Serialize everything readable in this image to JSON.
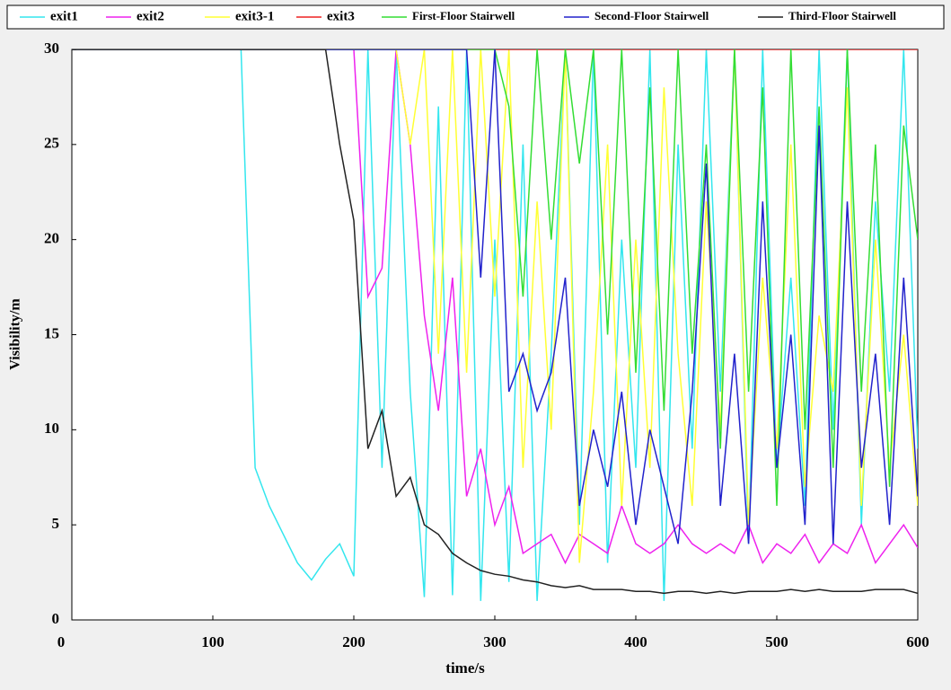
{
  "chart_data": {
    "type": "line",
    "x_label": "time/s",
    "y_label": "Visibility/m",
    "xlim": [
      0,
      600
    ],
    "ylim": [
      0,
      30
    ],
    "xticks": [
      0,
      100,
      200,
      300,
      400,
      500,
      600
    ],
    "yticks": [
      0,
      5,
      10,
      15,
      20,
      25,
      30
    ],
    "legend": "top",
    "x": [
      0,
      10,
      20,
      30,
      40,
      50,
      60,
      70,
      80,
      90,
      100,
      110,
      120,
      130,
      140,
      150,
      160,
      170,
      180,
      190,
      200,
      210,
      220,
      230,
      240,
      250,
      260,
      270,
      280,
      290,
      300,
      310,
      320,
      330,
      340,
      350,
      360,
      370,
      380,
      390,
      400,
      410,
      420,
      430,
      440,
      450,
      460,
      470,
      480,
      490,
      500,
      510,
      520,
      530,
      540,
      550,
      560,
      570,
      580,
      590,
      600
    ],
    "series": [
      {
        "name": "exit1",
        "color": "#33e6ee",
        "values": [
          30,
          30,
          30,
          30,
          30,
          30,
          30,
          30,
          30,
          30,
          30,
          30,
          30,
          8,
          6,
          4.5,
          3,
          2.1,
          3.2,
          4,
          2.3,
          30,
          8,
          30,
          12,
          1.2,
          27,
          1.3,
          30,
          1,
          20,
          2,
          25,
          1,
          14,
          30,
          5,
          30,
          3,
          20,
          8,
          30,
          1,
          25,
          9,
          30,
          12,
          30,
          4,
          30,
          8,
          18,
          6,
          30,
          10,
          30,
          5,
          22,
          12,
          30,
          9
        ]
      },
      {
        "name": "exit2",
        "color": "#ee22ee",
        "values": [
          30,
          30,
          30,
          30,
          30,
          30,
          30,
          30,
          30,
          30,
          30,
          30,
          30,
          30,
          30,
          30,
          30,
          30,
          30,
          30,
          30,
          17,
          18.5,
          30,
          25,
          16,
          11,
          18,
          6.5,
          9,
          5,
          7,
          3.5,
          4,
          4.5,
          3,
          4.5,
          4,
          3.5,
          6,
          4,
          3.5,
          4,
          5,
          4,
          3.5,
          4,
          3.5,
          5,
          3,
          4,
          3.5,
          4.5,
          3,
          4,
          3.5,
          5,
          3,
          4,
          5,
          3.8
        ]
      },
      {
        "name": "exit3-1",
        "color": "#ffff33",
        "values": [
          30,
          30,
          30,
          30,
          30,
          30,
          30,
          30,
          30,
          30,
          30,
          30,
          30,
          30,
          30,
          30,
          30,
          30,
          30,
          30,
          30,
          30,
          30,
          30,
          25,
          30,
          14,
          30,
          13,
          30,
          17,
          30,
          8,
          22,
          10,
          30,
          3,
          12,
          25,
          6,
          20,
          8,
          28,
          14,
          6,
          22,
          10,
          30,
          5,
          18,
          9,
          25,
          7,
          16,
          12,
          28,
          6,
          20,
          8,
          15,
          6
        ]
      },
      {
        "name": "exit3",
        "color": "#ee2222",
        "values": [
          30,
          30,
          30,
          30,
          30,
          30,
          30,
          30,
          30,
          30,
          30,
          30,
          30,
          30,
          30,
          30,
          30,
          30,
          30,
          30,
          30,
          30,
          30,
          30,
          30,
          30,
          30,
          30,
          30,
          30,
          30,
          30,
          30,
          30,
          30,
          30,
          30,
          30,
          30,
          30,
          30,
          30,
          30,
          30,
          30,
          30,
          30,
          30,
          30,
          30,
          30,
          30,
          30,
          30,
          30,
          30,
          30,
          30,
          30,
          30,
          30
        ]
      },
      {
        "name": "First-Floor Stairwell",
        "color": "#33dd33",
        "values": [
          30,
          30,
          30,
          30,
          30,
          30,
          30,
          30,
          30,
          30,
          30,
          30,
          30,
          30,
          30,
          30,
          30,
          30,
          30,
          30,
          30,
          30,
          30,
          30,
          30,
          30,
          30,
          30,
          30,
          30,
          30,
          27,
          17,
          30,
          20,
          30,
          24,
          30,
          15,
          30,
          13,
          28,
          11,
          30,
          14,
          25,
          9,
          30,
          12,
          28,
          6,
          30,
          10,
          27,
          8,
          30,
          12,
          25,
          7,
          26,
          20
        ]
      },
      {
        "name": "Second-Floor Stairwell",
        "color": "#2222cc",
        "values": [
          30,
          30,
          30,
          30,
          30,
          30,
          30,
          30,
          30,
          30,
          30,
          30,
          30,
          30,
          30,
          30,
          30,
          30,
          30,
          30,
          30,
          30,
          30,
          30,
          30,
          30,
          30,
          30,
          30,
          18,
          30,
          12,
          14,
          11,
          13,
          18,
          6,
          10,
          7,
          12,
          5,
          10,
          7,
          4,
          12,
          24,
          6,
          14,
          4,
          22,
          8,
          15,
          5,
          26,
          4,
          22,
          8,
          14,
          5,
          18,
          6.5
        ]
      },
      {
        "name": "Third-Floor Stairwell",
        "color": "#222222",
        "values": [
          30,
          30,
          30,
          30,
          30,
          30,
          30,
          30,
          30,
          30,
          30,
          30,
          30,
          30,
          30,
          30,
          30,
          30,
          30,
          25,
          21,
          9,
          11,
          6.5,
          7.5,
          5,
          4.5,
          3.5,
          3,
          2.6,
          2.4,
          2.3,
          2.1,
          2,
          1.8,
          1.7,
          1.8,
          1.6,
          1.6,
          1.6,
          1.5,
          1.5,
          1.4,
          1.5,
          1.5,
          1.4,
          1.5,
          1.4,
          1.5,
          1.5,
          1.5,
          1.6,
          1.5,
          1.6,
          1.5,
          1.5,
          1.5,
          1.6,
          1.6,
          1.6,
          1.4
        ]
      }
    ]
  }
}
